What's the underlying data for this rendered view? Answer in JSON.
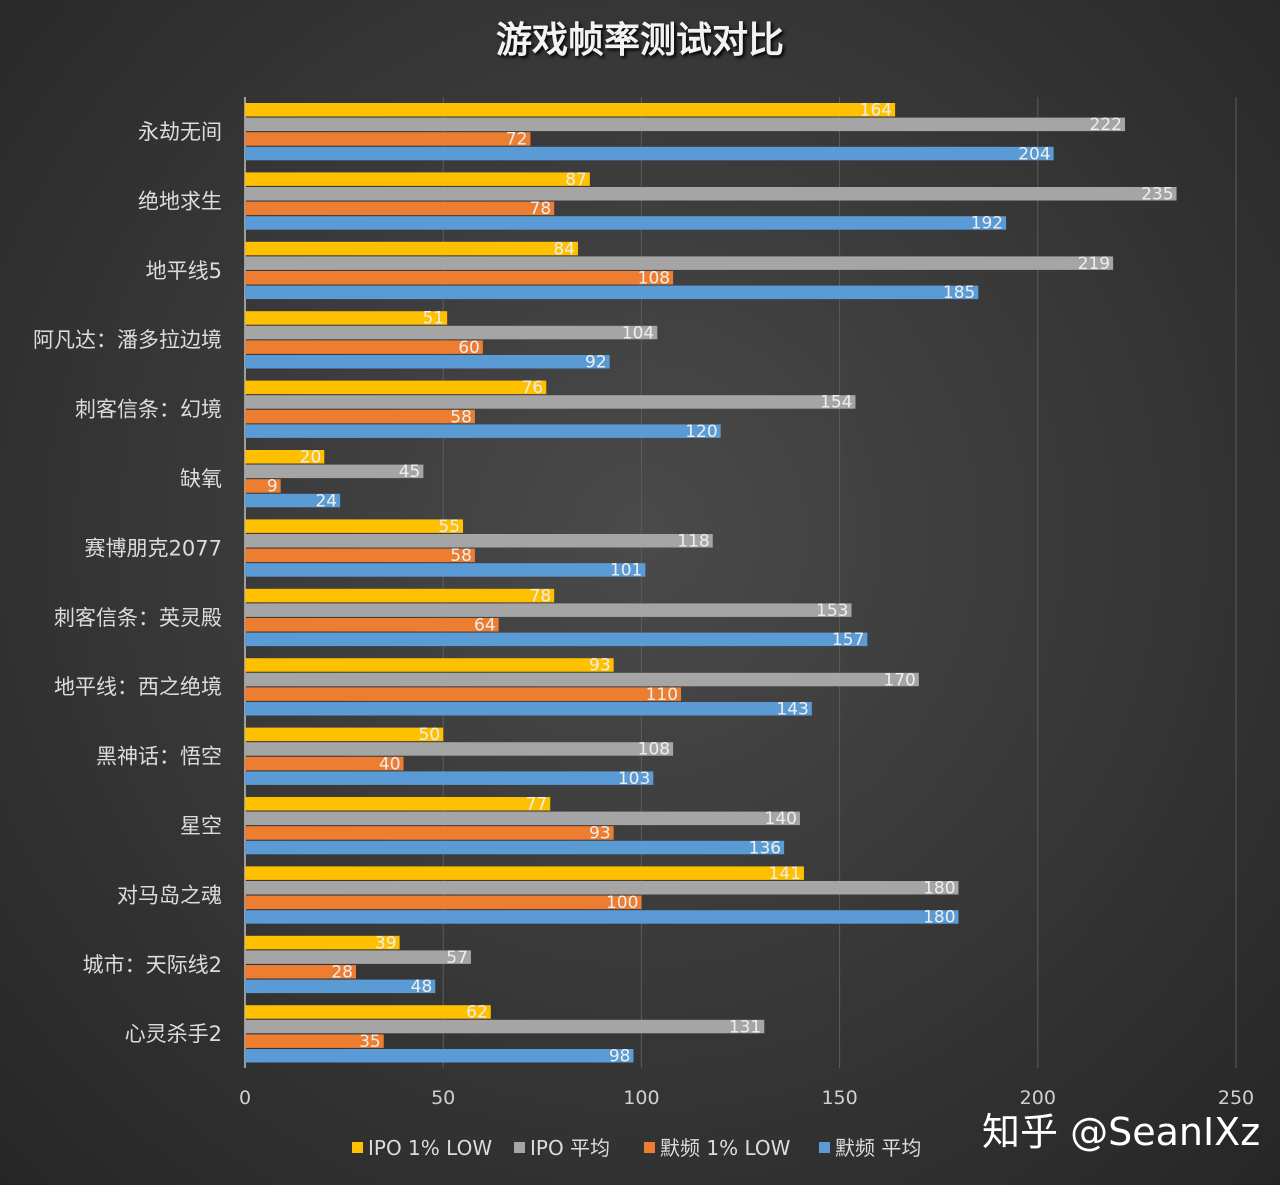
{
  "chart_data": {
    "type": "bar",
    "orientation": "horizontal",
    "title": "游戏帧率测试对比",
    "categories": [
      "永劫无间",
      "绝地求生",
      "地平线5",
      "阿凡达：潘多拉边境",
      "刺客信条：幻境",
      "缺氧",
      "赛博朋克2077",
      "刺客信条：英灵殿",
      "地平线：西之绝境",
      "黑神话：悟空",
      "星空",
      "对马岛之魂",
      "城市：天际线2",
      "心灵杀手2"
    ],
    "series": [
      {
        "name": "IPO 1% LOW",
        "color": "#FFC000",
        "values": [
          164,
          87,
          84,
          51,
          76,
          20,
          55,
          78,
          93,
          50,
          77,
          141,
          39,
          62
        ]
      },
      {
        "name": "IPO 平均",
        "color": "#A5A5A5",
        "values": [
          222,
          235,
          219,
          104,
          154,
          45,
          118,
          153,
          170,
          108,
          140,
          180,
          57,
          131
        ]
      },
      {
        "name": "默频 1% LOW",
        "color": "#ED7D31",
        "values": [
          72,
          78,
          108,
          60,
          58,
          9,
          58,
          64,
          110,
          40,
          93,
          100,
          28,
          35
        ]
      },
      {
        "name": "默频 平均",
        "color": "#5B9BD5",
        "values": [
          204,
          192,
          185,
          92,
          120,
          24,
          101,
          157,
          143,
          103,
          136,
          180,
          48,
          98
        ]
      }
    ],
    "xlim": [
      0,
      250
    ],
    "xticks": [
      "0",
      "50",
      "100",
      "150",
      "200",
      "250"
    ],
    "grid": true,
    "legend": "bottom",
    "xlabel": "",
    "ylabel": ""
  },
  "watermark": "知乎 @SeanIXz"
}
